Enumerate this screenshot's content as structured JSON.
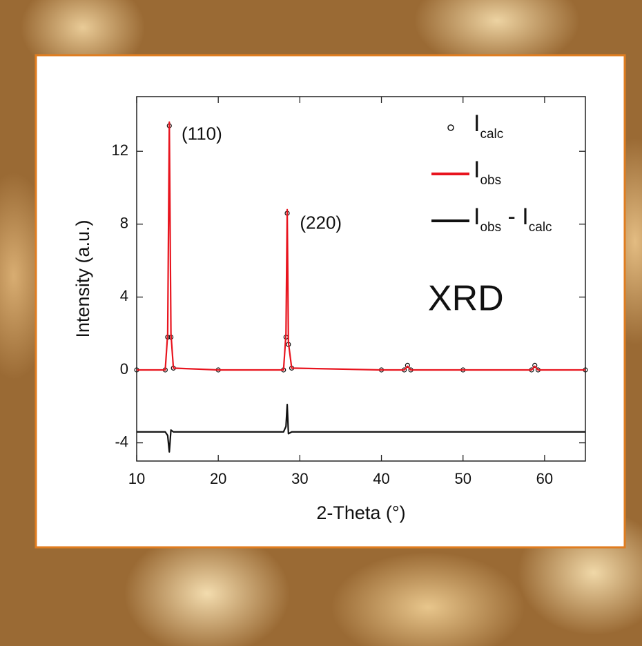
{
  "chart_data": {
    "type": "line",
    "x_label": "2-Theta (°)",
    "y_label": "Intensity (a.u.)",
    "x": [
      10,
      13.5,
      13.8,
      14.0,
      14.2,
      14.5,
      20,
      28.0,
      28.3,
      28.45,
      28.6,
      29.0,
      40,
      42.8,
      43.2,
      43.6,
      50,
      58.4,
      58.8,
      59.2,
      65
    ],
    "series": [
      {
        "name": [
          "I",
          "calc"
        ],
        "style": "circles",
        "color": "#111111",
        "values": [
          0,
          0,
          1.8,
          13.4,
          1.8,
          0.1,
          0,
          0,
          1.8,
          8.6,
          1.4,
          0.1,
          0,
          0,
          0.25,
          0,
          0,
          0,
          0.25,
          0,
          0
        ]
      },
      {
        "name": [
          "I",
          "obs"
        ],
        "style": "line",
        "color": "#e8141e",
        "values": [
          0,
          0,
          2,
          13.6,
          2,
          0.1,
          0,
          0,
          2,
          8.8,
          1.5,
          0.1,
          0,
          0,
          0.2,
          0,
          0,
          0,
          0.2,
          0,
          0
        ]
      },
      {
        "name": [
          "I",
          "obs",
          " - I",
          "calc"
        ],
        "style": "line",
        "color": "#111111",
        "values": [
          -3.4,
          -3.4,
          -3.6,
          -4.5,
          -3.3,
          -3.4,
          -3.4,
          -3.4,
          -3.1,
          -1.9,
          -3.5,
          -3.4,
          -3.4,
          -3.4,
          -3.4,
          -3.4,
          -3.4,
          -3.4,
          -3.4,
          -3.4,
          -3.4
        ]
      }
    ],
    "xlim": [
      10,
      65
    ],
    "xticks": [
      10,
      20,
      30,
      40,
      50,
      60
    ],
    "ylim": [
      -5,
      15
    ],
    "yticks": [
      -4,
      0,
      4,
      8,
      12
    ],
    "annotations": [
      {
        "text": "(110)",
        "x": 15.5,
        "y": 12.9
      },
      {
        "text": "(220)",
        "x": 30.0,
        "y": 8.0
      },
      {
        "text": "XRD",
        "x": 45.7,
        "y": 3.8
      }
    ],
    "legend": "upper right"
  }
}
